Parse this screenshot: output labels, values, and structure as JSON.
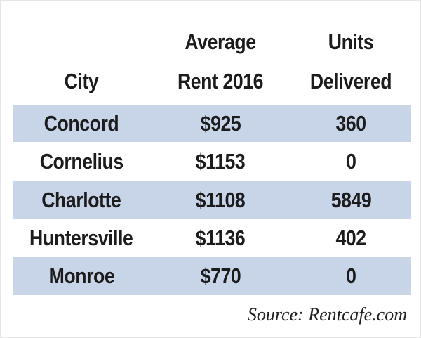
{
  "table": {
    "headers": {
      "city": [
        "City"
      ],
      "rent": [
        "Average",
        "Rent 2016"
      ],
      "units": [
        "Units",
        "Delivered"
      ]
    },
    "rows": [
      {
        "city": "Concord",
        "rent": "$925",
        "units": "360",
        "shaded": true
      },
      {
        "city": "Cornelius",
        "rent": "$1153",
        "units": "0",
        "shaded": false
      },
      {
        "city": "Charlotte",
        "rent": "$1108",
        "units": "5849",
        "shaded": true
      },
      {
        "city": "Huntersville",
        "rent": "$1136",
        "units": "402",
        "shaded": false
      },
      {
        "city": "Monroe",
        "rent": "$770",
        "units": "0",
        "shaded": true
      }
    ]
  },
  "source": "Source: Rentcafe.com",
  "colors": {
    "row_shade": "#c8d4e8",
    "text": "#1c1c1c",
    "background": "#ffffff"
  }
}
